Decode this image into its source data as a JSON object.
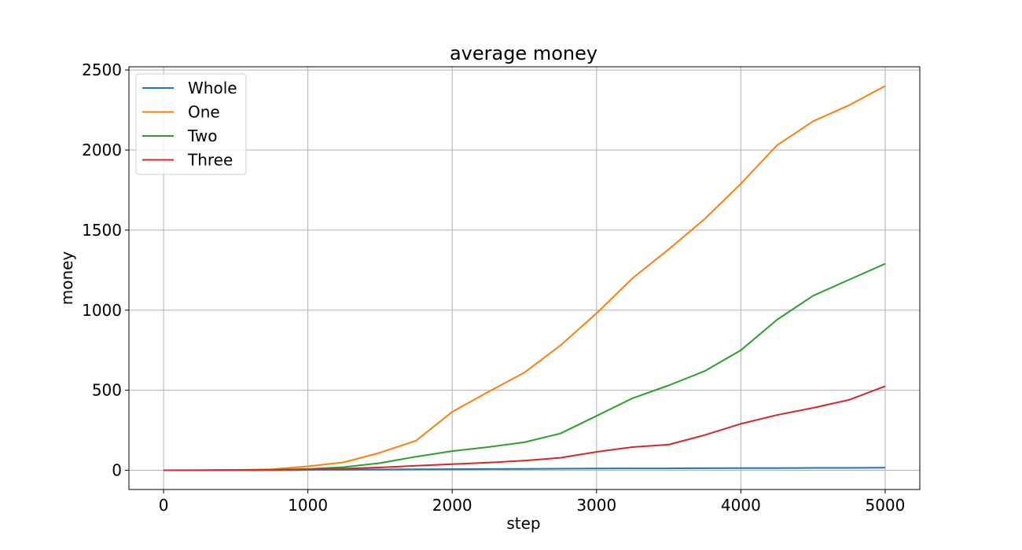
{
  "chart_data": {
    "type": "line",
    "title": "average money",
    "xlabel": "step",
    "ylabel": "money",
    "xlim": [
      -240,
      5240
    ],
    "ylim": [
      -120,
      2520
    ],
    "xticks": [
      0,
      1000,
      2000,
      3000,
      4000,
      5000
    ],
    "yticks": [
      0,
      500,
      1000,
      1500,
      2000,
      2500
    ],
    "grid": true,
    "legend_position": "top-left",
    "x": [
      0,
      250,
      500,
      750,
      1000,
      1250,
      1500,
      1750,
      2000,
      2250,
      2500,
      2750,
      3000,
      3250,
      3500,
      3750,
      4000,
      4250,
      4500,
      4750,
      5000
    ],
    "series": [
      {
        "name": "Whole",
        "color": "#1f77b4",
        "values": [
          0,
          0,
          1,
          2,
          3,
          4,
          5,
          6,
          7,
          8,
          9,
          10,
          11,
          12,
          12,
          13,
          14,
          14,
          15,
          15,
          16
        ]
      },
      {
        "name": "One",
        "color": "#ff7f0e",
        "values": [
          0,
          1,
          2,
          6,
          25,
          50,
          110,
          185,
          365,
          490,
          610,
          780,
          980,
          1200,
          1380,
          1570,
          1790,
          2030,
          2180,
          2280,
          2400
        ]
      },
      {
        "name": "Two",
        "color": "#2ca02c",
        "values": [
          0,
          0,
          1,
          3,
          8,
          20,
          45,
          85,
          120,
          145,
          175,
          230,
          340,
          450,
          530,
          620,
          750,
          940,
          1090,
          1190,
          1290
        ]
      },
      {
        "name": "Three",
        "color": "#d62728",
        "values": [
          0,
          0,
          1,
          2,
          5,
          10,
          18,
          28,
          38,
          48,
          60,
          78,
          115,
          145,
          160,
          220,
          290,
          345,
          390,
          440,
          525
        ]
      }
    ]
  }
}
